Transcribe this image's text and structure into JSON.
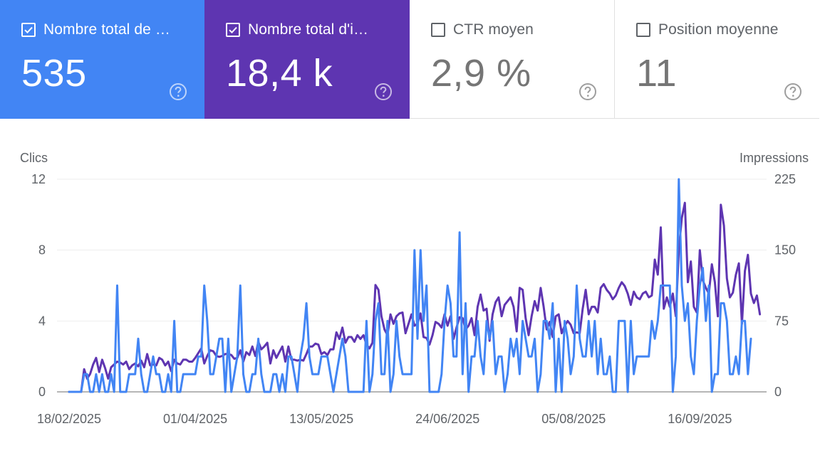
{
  "cards": [
    {
      "label": "Nombre total de …",
      "value": "535",
      "checked": true
    },
    {
      "label": "Nombre total d'i…",
      "value": "18,4 k",
      "checked": true
    },
    {
      "label": "CTR moyen",
      "value": "2,9 %",
      "checked": false
    },
    {
      "label": "Position moyenne",
      "value": "11",
      "checked": false
    }
  ],
  "colors": {
    "clicks": "#4285f4",
    "impressions": "#5e35b1"
  },
  "chart_data": {
    "type": "line",
    "left_axis": {
      "title": "Clics",
      "ticks": [
        "0",
        "4",
        "8",
        "12"
      ],
      "range": [
        0,
        12
      ]
    },
    "right_axis": {
      "title": "Impressions",
      "ticks": [
        "0",
        "75",
        "150",
        "225"
      ],
      "range": [
        0,
        225
      ]
    },
    "x_ticks": [
      {
        "label": "18/02/2025",
        "index": 0
      },
      {
        "label": "01/04/2025",
        "index": 42
      },
      {
        "label": "13/05/2025",
        "index": 84
      },
      {
        "label": "24/06/2025",
        "index": 126
      },
      {
        "label": "05/08/2025",
        "index": 168
      },
      {
        "label": "16/09/2025",
        "index": 210
      }
    ],
    "grid": true,
    "series": [
      {
        "axis": "left",
        "values": [
          0,
          0,
          0,
          0,
          0,
          1,
          1,
          0,
          0,
          1,
          0,
          1,
          0,
          0,
          1,
          0,
          6,
          0,
          0,
          0,
          1,
          1,
          1,
          3,
          1,
          0,
          0,
          1,
          2,
          1,
          1,
          0,
          0,
          1,
          0,
          4,
          0,
          0,
          1,
          1,
          1,
          1,
          1,
          2,
          2,
          6,
          4,
          1,
          1,
          2,
          3,
          3,
          0,
          3,
          0,
          1,
          2,
          6,
          1,
          0,
          0,
          1,
          1,
          3,
          1,
          0,
          0,
          0,
          1,
          1,
          0,
          1,
          0,
          2,
          2,
          1,
          0,
          2,
          3,
          5,
          2,
          1,
          1,
          1,
          2,
          2,
          2,
          1,
          0,
          1,
          2,
          3,
          2,
          0,
          0,
          0,
          0,
          0,
          0,
          4,
          0,
          1,
          4,
          5,
          1,
          1,
          4,
          0,
          1,
          4,
          2,
          1,
          1,
          1,
          1,
          8,
          3,
          8,
          4,
          6,
          0,
          0,
          0,
          0,
          1,
          4,
          6,
          5,
          2,
          2,
          9,
          1,
          5,
          0,
          2,
          2,
          4,
          2,
          1,
          4,
          3,
          4,
          1,
          2,
          2,
          0,
          1,
          3,
          2,
          3,
          1,
          4,
          3,
          2,
          2,
          3,
          0,
          1,
          4,
          4,
          3,
          5,
          0,
          3,
          0,
          4,
          3,
          1,
          2,
          6,
          3,
          2,
          2,
          4,
          2,
          4,
          1,
          3,
          1,
          1,
          2,
          0,
          0,
          4,
          4,
          4,
          0,
          4,
          1,
          2,
          2,
          2,
          2,
          2,
          4,
          3,
          4,
          6,
          6,
          6,
          6,
          0,
          2,
          12,
          6,
          4,
          5,
          2,
          1,
          4,
          6,
          7,
          4,
          6,
          0,
          1,
          1,
          5,
          5,
          4,
          1,
          1,
          2,
          1,
          4,
          4,
          1,
          3
        ]
      },
      {
        "axis": "right",
        "values": [
          0,
          0,
          0,
          0,
          0,
          24,
          14,
          19,
          29,
          36,
          21,
          34,
          25,
          14,
          26,
          29,
          32,
          31,
          29,
          32,
          24,
          28,
          30,
          27,
          33,
          26,
          40,
          28,
          29,
          28,
          36,
          34,
          28,
          32,
          22,
          34,
          30,
          29,
          34,
          34,
          32,
          32,
          36,
          41,
          46,
          30,
          38,
          44,
          43,
          38,
          37,
          38,
          40,
          40,
          39,
          35,
          36,
          44,
          32,
          42,
          39,
          48,
          38,
          53,
          45,
          48,
          52,
          30,
          44,
          36,
          42,
          48,
          32,
          48,
          34,
          34,
          33,
          34,
          33,
          40,
          48,
          48,
          51,
          50,
          40,
          42,
          39,
          45,
          45,
          63,
          56,
          68,
          52,
          58,
          58,
          53,
          60,
          56,
          60,
          50,
          46,
          52,
          113,
          108,
          80,
          66,
          60,
          82,
          72,
          80,
          83,
          84,
          62,
          72,
          82,
          70,
          72,
          83,
          58,
          57,
          50,
          60,
          74,
          72,
          68,
          82,
          70,
          80,
          56,
          68,
          79,
          78,
          66,
          70,
          78,
          60,
          90,
          103,
          86,
          88,
          54,
          82,
          95,
          100,
          80,
          92,
          96,
          100,
          90,
          64,
          110,
          108,
          78,
          60,
          80,
          96,
          86,
          110,
          90,
          66,
          74,
          58,
          80,
          82,
          62,
          70,
          75,
          71,
          62,
          63,
          62,
          88,
          108,
          82,
          90,
          90,
          84,
          110,
          114,
          108,
          104,
          98,
          102,
          110,
          116,
          112,
          104,
          92,
          106,
          100,
          98,
          104,
          106,
          100,
          102,
          140,
          124,
          174,
          88,
          100,
          90,
          104,
          80,
          150,
          184,
          200,
          116,
          138,
          90,
          84,
          150,
          118,
          110,
          104,
          135,
          116,
          80,
          198,
          176,
          120,
          100,
          105,
          124,
          136,
          72,
          128,
          145,
          104,
          94,
          102,
          82
        ]
      }
    ]
  }
}
